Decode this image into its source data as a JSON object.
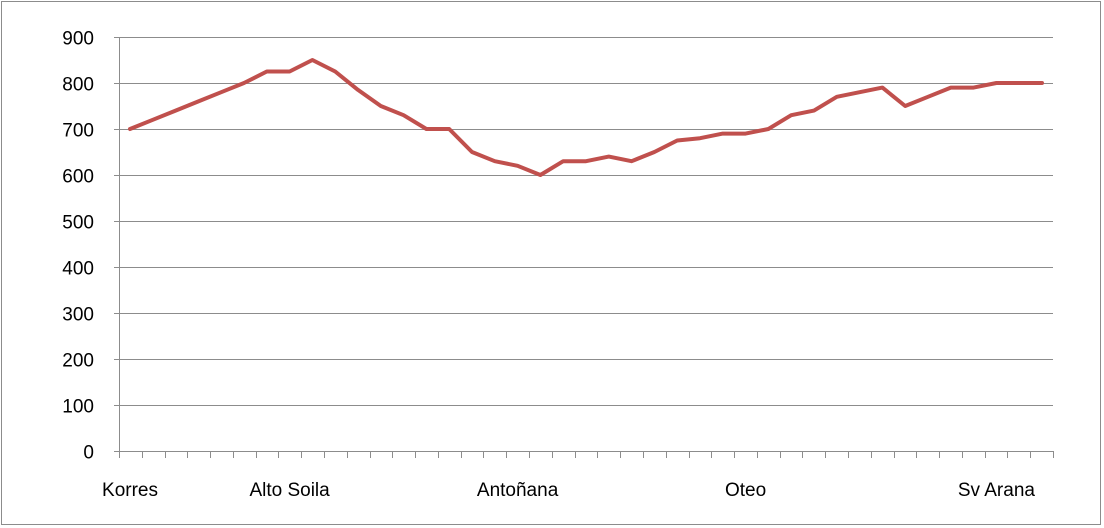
{
  "chart_data": {
    "type": "line",
    "title": "",
    "xlabel": "",
    "ylabel": "",
    "ylim": [
      0,
      900
    ],
    "y_ticks": [
      0,
      100,
      200,
      300,
      400,
      500,
      600,
      700,
      800,
      900
    ],
    "x_tick_labels": [
      {
        "index": 0,
        "label": "Korres"
      },
      {
        "index": 7,
        "label": "Alto Soila"
      },
      {
        "index": 17,
        "label": "Antoñana"
      },
      {
        "index": 27,
        "label": "Oteo"
      },
      {
        "index": 38,
        "label": "Sv Arana"
      }
    ],
    "grid": true,
    "legend": "none",
    "line_color": "#C0504D",
    "series": [
      {
        "values": [
          700,
          720,
          740,
          760,
          780,
          800,
          825,
          825,
          850,
          825,
          785,
          750,
          730,
          700,
          700,
          650,
          630,
          620,
          600,
          630,
          630,
          640,
          630,
          650,
          675,
          680,
          690,
          690,
          700,
          730,
          740,
          770,
          780,
          790,
          750,
          770,
          790,
          790,
          800,
          800,
          800
        ]
      }
    ]
  }
}
